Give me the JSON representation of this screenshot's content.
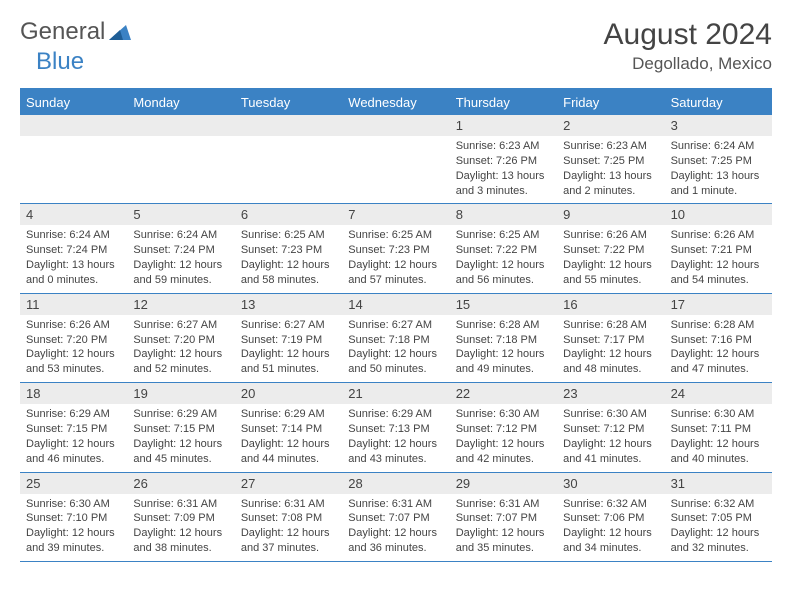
{
  "logo": {
    "general": "General",
    "blue": "Blue"
  },
  "title": {
    "month": "August 2024",
    "location": "Degollado, Mexico"
  },
  "colors": {
    "accent": "#3b82c4",
    "row_bg": "#ececec",
    "text": "#444444"
  },
  "weekdays": [
    "Sunday",
    "Monday",
    "Tuesday",
    "Wednesday",
    "Thursday",
    "Friday",
    "Saturday"
  ],
  "weeks": [
    [
      {
        "n": "",
        "sr": "",
        "ss": "",
        "dl": ""
      },
      {
        "n": "",
        "sr": "",
        "ss": "",
        "dl": ""
      },
      {
        "n": "",
        "sr": "",
        "ss": "",
        "dl": ""
      },
      {
        "n": "",
        "sr": "",
        "ss": "",
        "dl": ""
      },
      {
        "n": "1",
        "sr": "Sunrise: 6:23 AM",
        "ss": "Sunset: 7:26 PM",
        "dl": "Daylight: 13 hours and 3 minutes."
      },
      {
        "n": "2",
        "sr": "Sunrise: 6:23 AM",
        "ss": "Sunset: 7:25 PM",
        "dl": "Daylight: 13 hours and 2 minutes."
      },
      {
        "n": "3",
        "sr": "Sunrise: 6:24 AM",
        "ss": "Sunset: 7:25 PM",
        "dl": "Daylight: 13 hours and 1 minute."
      }
    ],
    [
      {
        "n": "4",
        "sr": "Sunrise: 6:24 AM",
        "ss": "Sunset: 7:24 PM",
        "dl": "Daylight: 13 hours and 0 minutes."
      },
      {
        "n": "5",
        "sr": "Sunrise: 6:24 AM",
        "ss": "Sunset: 7:24 PM",
        "dl": "Daylight: 12 hours and 59 minutes."
      },
      {
        "n": "6",
        "sr": "Sunrise: 6:25 AM",
        "ss": "Sunset: 7:23 PM",
        "dl": "Daylight: 12 hours and 58 minutes."
      },
      {
        "n": "7",
        "sr": "Sunrise: 6:25 AM",
        "ss": "Sunset: 7:23 PM",
        "dl": "Daylight: 12 hours and 57 minutes."
      },
      {
        "n": "8",
        "sr": "Sunrise: 6:25 AM",
        "ss": "Sunset: 7:22 PM",
        "dl": "Daylight: 12 hours and 56 minutes."
      },
      {
        "n": "9",
        "sr": "Sunrise: 6:26 AM",
        "ss": "Sunset: 7:22 PM",
        "dl": "Daylight: 12 hours and 55 minutes."
      },
      {
        "n": "10",
        "sr": "Sunrise: 6:26 AM",
        "ss": "Sunset: 7:21 PM",
        "dl": "Daylight: 12 hours and 54 minutes."
      }
    ],
    [
      {
        "n": "11",
        "sr": "Sunrise: 6:26 AM",
        "ss": "Sunset: 7:20 PM",
        "dl": "Daylight: 12 hours and 53 minutes."
      },
      {
        "n": "12",
        "sr": "Sunrise: 6:27 AM",
        "ss": "Sunset: 7:20 PM",
        "dl": "Daylight: 12 hours and 52 minutes."
      },
      {
        "n": "13",
        "sr": "Sunrise: 6:27 AM",
        "ss": "Sunset: 7:19 PM",
        "dl": "Daylight: 12 hours and 51 minutes."
      },
      {
        "n": "14",
        "sr": "Sunrise: 6:27 AM",
        "ss": "Sunset: 7:18 PM",
        "dl": "Daylight: 12 hours and 50 minutes."
      },
      {
        "n": "15",
        "sr": "Sunrise: 6:28 AM",
        "ss": "Sunset: 7:18 PM",
        "dl": "Daylight: 12 hours and 49 minutes."
      },
      {
        "n": "16",
        "sr": "Sunrise: 6:28 AM",
        "ss": "Sunset: 7:17 PM",
        "dl": "Daylight: 12 hours and 48 minutes."
      },
      {
        "n": "17",
        "sr": "Sunrise: 6:28 AM",
        "ss": "Sunset: 7:16 PM",
        "dl": "Daylight: 12 hours and 47 minutes."
      }
    ],
    [
      {
        "n": "18",
        "sr": "Sunrise: 6:29 AM",
        "ss": "Sunset: 7:15 PM",
        "dl": "Daylight: 12 hours and 46 minutes."
      },
      {
        "n": "19",
        "sr": "Sunrise: 6:29 AM",
        "ss": "Sunset: 7:15 PM",
        "dl": "Daylight: 12 hours and 45 minutes."
      },
      {
        "n": "20",
        "sr": "Sunrise: 6:29 AM",
        "ss": "Sunset: 7:14 PM",
        "dl": "Daylight: 12 hours and 44 minutes."
      },
      {
        "n": "21",
        "sr": "Sunrise: 6:29 AM",
        "ss": "Sunset: 7:13 PM",
        "dl": "Daylight: 12 hours and 43 minutes."
      },
      {
        "n": "22",
        "sr": "Sunrise: 6:30 AM",
        "ss": "Sunset: 7:12 PM",
        "dl": "Daylight: 12 hours and 42 minutes."
      },
      {
        "n": "23",
        "sr": "Sunrise: 6:30 AM",
        "ss": "Sunset: 7:12 PM",
        "dl": "Daylight: 12 hours and 41 minutes."
      },
      {
        "n": "24",
        "sr": "Sunrise: 6:30 AM",
        "ss": "Sunset: 7:11 PM",
        "dl": "Daylight: 12 hours and 40 minutes."
      }
    ],
    [
      {
        "n": "25",
        "sr": "Sunrise: 6:30 AM",
        "ss": "Sunset: 7:10 PM",
        "dl": "Daylight: 12 hours and 39 minutes."
      },
      {
        "n": "26",
        "sr": "Sunrise: 6:31 AM",
        "ss": "Sunset: 7:09 PM",
        "dl": "Daylight: 12 hours and 38 minutes."
      },
      {
        "n": "27",
        "sr": "Sunrise: 6:31 AM",
        "ss": "Sunset: 7:08 PM",
        "dl": "Daylight: 12 hours and 37 minutes."
      },
      {
        "n": "28",
        "sr": "Sunrise: 6:31 AM",
        "ss": "Sunset: 7:07 PM",
        "dl": "Daylight: 12 hours and 36 minutes."
      },
      {
        "n": "29",
        "sr": "Sunrise: 6:31 AM",
        "ss": "Sunset: 7:07 PM",
        "dl": "Daylight: 12 hours and 35 minutes."
      },
      {
        "n": "30",
        "sr": "Sunrise: 6:32 AM",
        "ss": "Sunset: 7:06 PM",
        "dl": "Daylight: 12 hours and 34 minutes."
      },
      {
        "n": "31",
        "sr": "Sunrise: 6:32 AM",
        "ss": "Sunset: 7:05 PM",
        "dl": "Daylight: 12 hours and 32 minutes."
      }
    ]
  ]
}
